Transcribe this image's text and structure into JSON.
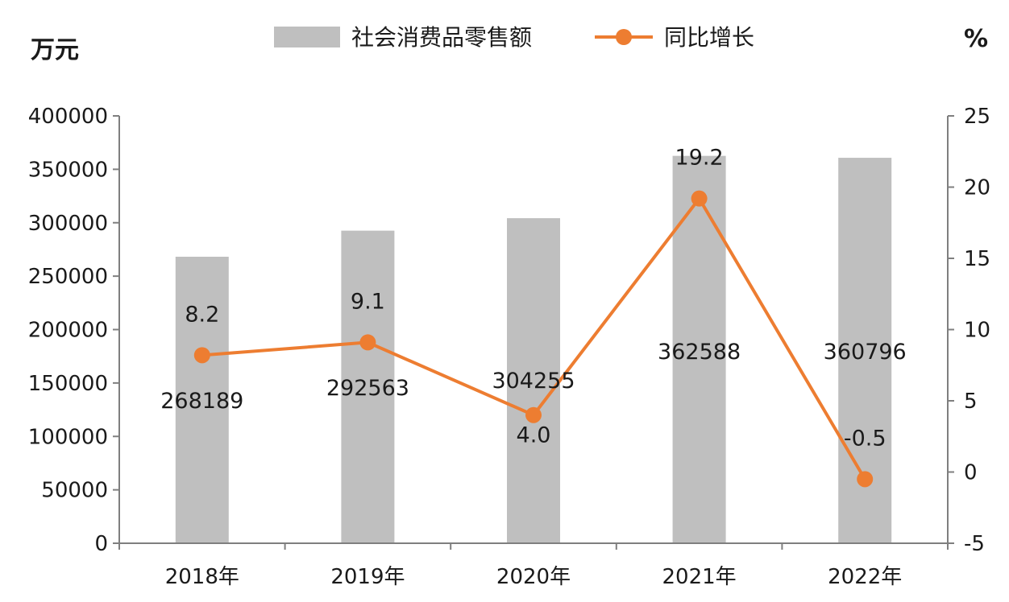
{
  "chart_data": {
    "type": "bar",
    "categories": [
      "2018年",
      "2019年",
      "2020年",
      "2021年",
      "2022年"
    ],
    "series": [
      {
        "name": "社会消费品零售额",
        "kind": "bar",
        "axis": "left",
        "color": "#bfbfbf",
        "values": [
          268189,
          292563,
          304255,
          362588,
          360796
        ],
        "labels": [
          "268189",
          "292563",
          "304255",
          "362588",
          "360796"
        ]
      },
      {
        "name": "同比增长",
        "kind": "line",
        "axis": "right",
        "color": "#ed7d31",
        "values": [
          8.2,
          9.1,
          4.0,
          19.2,
          -0.5
        ],
        "labels": [
          "8.2",
          "9.1",
          "4.0",
          "19.2",
          "-0.5"
        ]
      }
    ],
    "y_left": {
      "unit": "万元",
      "ylim": [
        0,
        400000
      ],
      "ticks": [
        "0",
        "50000",
        "100000",
        "150000",
        "200000",
        "250000",
        "300000",
        "350000",
        "400000"
      ]
    },
    "y_right": {
      "unit": "%",
      "ylim": [
        -5,
        25
      ],
      "ticks": [
        "-5",
        "0",
        "5",
        "10",
        "15",
        "20",
        "25"
      ]
    },
    "legend_position": "top",
    "grid": false
  }
}
